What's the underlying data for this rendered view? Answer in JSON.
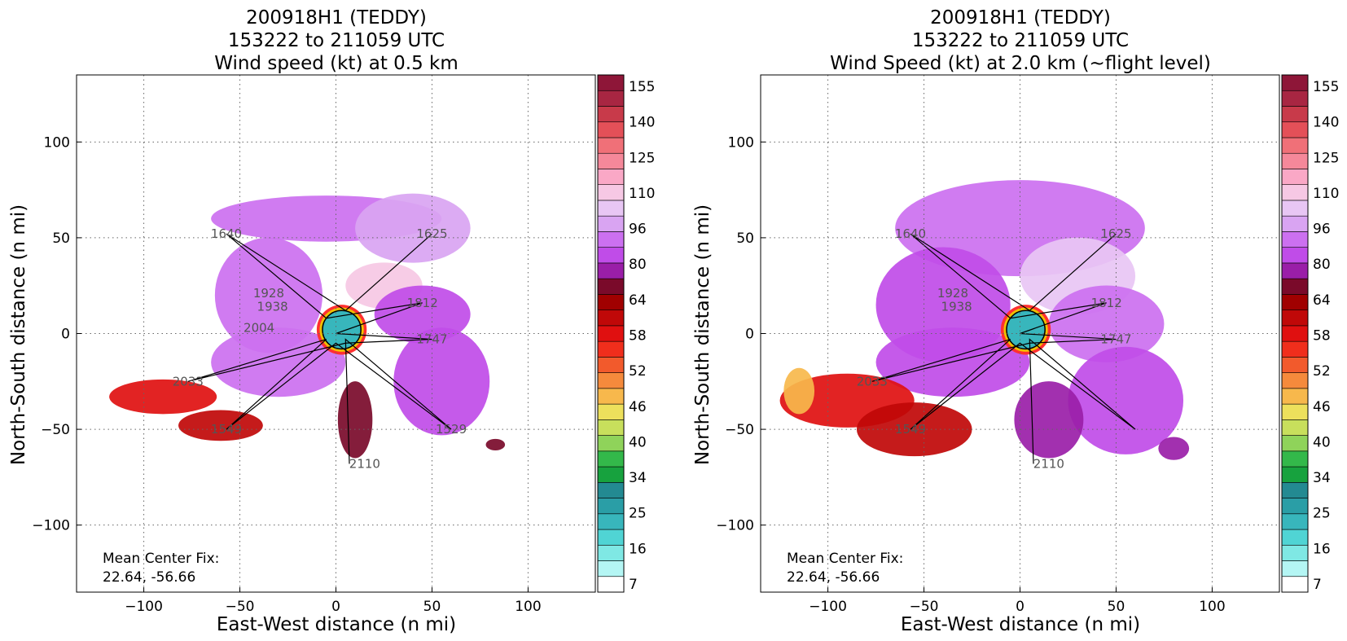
{
  "chart_data": [
    {
      "type": "heatmap",
      "title": [
        "200918H1 (TEDDY)",
        "153222 to 211059 UTC",
        "Wind speed (kt) at 0.5 km"
      ],
      "xlabel": "East-West distance (n mi)",
      "ylabel": "North-South distance (n mi)",
      "xlim": [
        -135,
        135
      ],
      "ylim": [
        -135,
        135
      ],
      "xticks": [
        -100,
        -50,
        0,
        50,
        100
      ],
      "yticks": [
        -100,
        -50,
        0,
        50,
        100
      ],
      "grid": true,
      "annotation": [
        "Mean Center Fix:",
        "22.64, -56.66"
      ],
      "time_labels": [
        {
          "text": "1625",
          "x": 50,
          "y": 52
        },
        {
          "text": "1640",
          "x": -57,
          "y": 52
        },
        {
          "text": "1928",
          "x": -35,
          "y": 21
        },
        {
          "text": "1938",
          "x": -33,
          "y": 14
        },
        {
          "text": "2004",
          "x": -40,
          "y": 3
        },
        {
          "text": "1812",
          "x": 45,
          "y": 16
        },
        {
          "text": "1747",
          "x": 50,
          "y": -3
        },
        {
          "text": "2033",
          "x": -77,
          "y": -25
        },
        {
          "text": "1549",
          "x": -57,
          "y": -50
        },
        {
          "text": "1529",
          "x": 60,
          "y": -50
        },
        {
          "text": "2110",
          "x": 15,
          "y": -68
        }
      ],
      "flight_track": [
        [
          50,
          52
        ],
        [
          5,
          12
        ],
        [
          -57,
          52
        ],
        [
          -5,
          8
        ],
        [
          45,
          16
        ],
        [
          0,
          0
        ],
        [
          50,
          -3
        ],
        [
          5,
          -5
        ],
        [
          -77,
          -25
        ],
        [
          -5,
          -3
        ],
        [
          -57,
          -50
        ],
        [
          0,
          -5
        ],
        [
          60,
          -50
        ],
        [
          5,
          -3
        ],
        [
          7,
          -68
        ]
      ],
      "wind_regions": [
        {
          "center": [
            -5,
            60
          ],
          "rx": 60,
          "ry": 12,
          "value": 92
        },
        {
          "center": [
            40,
            55
          ],
          "rx": 30,
          "ry": 18,
          "value": 100
        },
        {
          "center": [
            -35,
            20
          ],
          "rx": 28,
          "ry": 30,
          "value": 88
        },
        {
          "center": [
            25,
            25
          ],
          "rx": 20,
          "ry": 12,
          "value": 112
        },
        {
          "center": [
            45,
            10
          ],
          "rx": 25,
          "ry": 15,
          "value": 86
        },
        {
          "center": [
            -30,
            -15
          ],
          "rx": 35,
          "ry": 18,
          "value": 90
        },
        {
          "center": [
            55,
            -25
          ],
          "rx": 25,
          "ry": 28,
          "value": 84
        },
        {
          "center": [
            10,
            -45
          ],
          "rx": 9,
          "ry": 20,
          "value": 70
        },
        {
          "center": [
            -90,
            -33
          ],
          "rx": 28,
          "ry": 9,
          "value": 57
        },
        {
          "center": [
            -60,
            -48
          ],
          "rx": 22,
          "ry": 8,
          "value": 59
        },
        {
          "center": [
            83,
            -58
          ],
          "rx": 5,
          "ry": 3,
          "value": 70
        }
      ],
      "eye": {
        "center": [
          3,
          2
        ],
        "r": 10,
        "value": 20
      }
    },
    {
      "type": "heatmap",
      "title": [
        "200918H1 (TEDDY)",
        "153222 to 211059 UTC",
        "Wind Speed (kt) at 2.0 km (~flight level)"
      ],
      "xlabel": "East-West distance (n mi)",
      "ylabel": "North-South distance (n mi)",
      "xlim": [
        -135,
        135
      ],
      "ylim": [
        -135,
        135
      ],
      "xticks": [
        -100,
        -50,
        0,
        50,
        100
      ],
      "yticks": [
        -100,
        -50,
        0,
        50,
        100
      ],
      "grid": true,
      "annotation": [
        "Mean Center Fix:",
        "22.64, -56.66"
      ],
      "time_labels": [
        {
          "text": "1625",
          "x": 50,
          "y": 52
        },
        {
          "text": "1640",
          "x": -57,
          "y": 52
        },
        {
          "text": "1928",
          "x": -35,
          "y": 21
        },
        {
          "text": "1938",
          "x": -33,
          "y": 14
        },
        {
          "text": "1812",
          "x": 45,
          "y": 16
        },
        {
          "text": "1747",
          "x": 50,
          "y": -3
        },
        {
          "text": "2033",
          "x": -77,
          "y": -25
        },
        {
          "text": "1549",
          "x": -57,
          "y": -50
        },
        {
          "text": "2110",
          "x": 15,
          "y": -68
        }
      ],
      "flight_track": [
        [
          50,
          52
        ],
        [
          5,
          12
        ],
        [
          -57,
          52
        ],
        [
          -5,
          8
        ],
        [
          45,
          16
        ],
        [
          0,
          0
        ],
        [
          50,
          -3
        ],
        [
          5,
          -5
        ],
        [
          -77,
          -25
        ],
        [
          -5,
          -3
        ],
        [
          -57,
          -50
        ],
        [
          0,
          -5
        ],
        [
          60,
          -50
        ],
        [
          5,
          -3
        ],
        [
          7,
          -68
        ]
      ],
      "wind_regions": [
        {
          "center": [
            0,
            55
          ],
          "rx": 65,
          "ry": 25,
          "value": 92
        },
        {
          "center": [
            30,
            30
          ],
          "rx": 30,
          "ry": 20,
          "value": 105
        },
        {
          "center": [
            -40,
            15
          ],
          "rx": 35,
          "ry": 30,
          "value": 85
        },
        {
          "center": [
            45,
            5
          ],
          "rx": 30,
          "ry": 20,
          "value": 88
        },
        {
          "center": [
            -35,
            -15
          ],
          "rx": 40,
          "ry": 18,
          "value": 83
        },
        {
          "center": [
            55,
            -35
          ],
          "rx": 30,
          "ry": 28,
          "value": 80
        },
        {
          "center": [
            15,
            -45
          ],
          "rx": 18,
          "ry": 20,
          "value": 74
        },
        {
          "center": [
            -90,
            -35
          ],
          "rx": 35,
          "ry": 14,
          "value": 57
        },
        {
          "center": [
            -55,
            -50
          ],
          "rx": 30,
          "ry": 14,
          "value": 59
        },
        {
          "center": [
            -115,
            -30
          ],
          "rx": 8,
          "ry": 12,
          "value": 44
        },
        {
          "center": [
            80,
            -60
          ],
          "rx": 8,
          "ry": 6,
          "value": 78
        }
      ],
      "eye": {
        "center": [
          3,
          2
        ],
        "r": 10,
        "value": 20
      }
    }
  ],
  "colorbar": {
    "ticks": [
      "155",
      "140",
      "125",
      "110",
      "96",
      "80",
      "64",
      "58",
      "52",
      "46",
      "40",
      "34",
      "25",
      "16",
      "7"
    ],
    "colors": [
      "#ffffff",
      "#b4f6f4",
      "#7fe8e4",
      "#50d4d4",
      "#38b6bc",
      "#2a9ea6",
      "#238a92",
      "#17a23e",
      "#33b84a",
      "#8fd35a",
      "#c8df5c",
      "#ede05c",
      "#f7b84c",
      "#f58a3c",
      "#f25a2c",
      "#f02e1c",
      "#e01010",
      "#c00808",
      "#a00000",
      "#7a0a2a",
      "#9a1ea8",
      "#c04ce8",
      "#cc70f0",
      "#d9a4f2",
      "#e8c6f4",
      "#f6c8e4",
      "#faa8c6",
      "#f5889a",
      "#f07078",
      "#e45058",
      "#c83a4a",
      "#a82642",
      "#8e1638"
    ]
  }
}
